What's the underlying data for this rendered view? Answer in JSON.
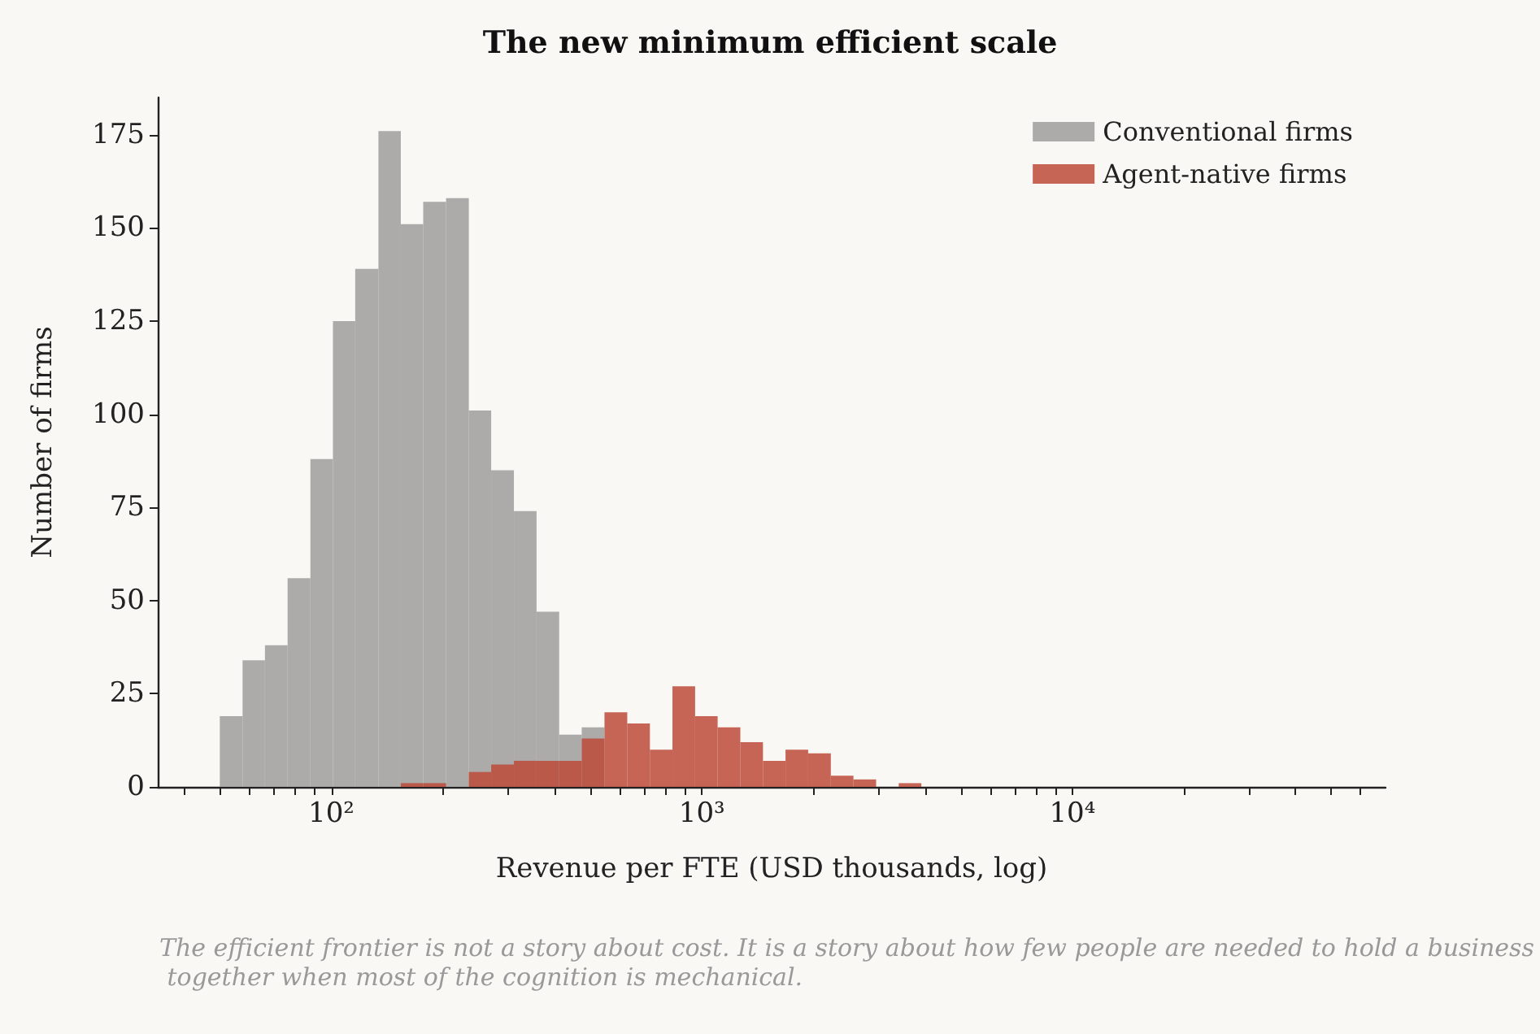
{
  "chart_data": {
    "type": "histogram",
    "title": "The new minimum efficient scale",
    "xlabel": "Revenue per FTE (USD thousands, log)",
    "ylabel": "Number of firms",
    "bins": [
      50,
      57.6,
      66.2,
      76.2,
      87.8,
      101,
      116,
      134,
      154,
      177,
      204,
      235,
      270,
      311,
      358,
      412,
      474,
      546,
      629,
      724,
      833,
      959,
      1103,
      1270,
      1462,
      1682,
      1936,
      2229,
      2565,
      2953,
      3399,
      3912
    ],
    "series": [
      {
        "name": "Conventional firms",
        "color": "#9d9d9b",
        "values": [
          19,
          34,
          38,
          56,
          88,
          125,
          139,
          176,
          151,
          157,
          158,
          101,
          85,
          74,
          47,
          14,
          16,
          null,
          null,
          null,
          null,
          null,
          null,
          null,
          null,
          null,
          null,
          null,
          null,
          null,
          null
        ]
      },
      {
        "name": "Agent-native firms",
        "color": "#bc4a3a",
        "values": [
          null,
          null,
          null,
          null,
          null,
          null,
          null,
          null,
          1,
          1,
          0,
          4,
          6,
          7,
          7,
          7,
          13,
          20,
          17,
          10,
          27,
          19,
          16,
          12,
          7,
          10,
          9,
          3,
          2,
          0,
          1
        ]
      }
    ],
    "log": "x",
    "xlim": [
      34,
      70000
    ],
    "xticks": [
      {
        "value": 40,
        "label": null
      },
      {
        "value": 50,
        "label": null
      },
      {
        "value": 60,
        "label": null
      },
      {
        "value": 70,
        "label": null
      },
      {
        "value": 80,
        "label": null
      },
      {
        "value": 90,
        "label": null
      },
      {
        "value": 100,
        "label": "10²"
      },
      {
        "value": 200,
        "label": null
      },
      {
        "value": 300,
        "label": null
      },
      {
        "value": 400,
        "label": null
      },
      {
        "value": 500,
        "label": null
      },
      {
        "value": 600,
        "label": null
      },
      {
        "value": 700,
        "label": null
      },
      {
        "value": 800,
        "label": null
      },
      {
        "value": 900,
        "label": null
      },
      {
        "value": 1000,
        "label": "10³"
      },
      {
        "value": 2000,
        "label": null
      },
      {
        "value": 3000,
        "label": null
      },
      {
        "value": 4000,
        "label": null
      },
      {
        "value": 5000,
        "label": null
      },
      {
        "value": 6000,
        "label": null
      },
      {
        "value": 7000,
        "label": null
      },
      {
        "value": 8000,
        "label": null
      },
      {
        "value": 9000,
        "label": null
      },
      {
        "value": 10000,
        "label": "10⁴"
      },
      {
        "value": 20000,
        "label": null
      },
      {
        "value": 30000,
        "label": null
      },
      {
        "value": 40000,
        "label": null
      },
      {
        "value": 50000,
        "label": null
      },
      {
        "value": 60000,
        "label": null
      }
    ],
    "ylim": [
      0,
      185
    ],
    "yticks": [
      0,
      25,
      50,
      75,
      100,
      125,
      150,
      175
    ],
    "grid": false,
    "legend": "top right",
    "annotations": [
      "The efficient frontier is not a story about cost. It is a story about how few people are needed to hold a business together when most of the cognition is mechanical."
    ]
  }
}
